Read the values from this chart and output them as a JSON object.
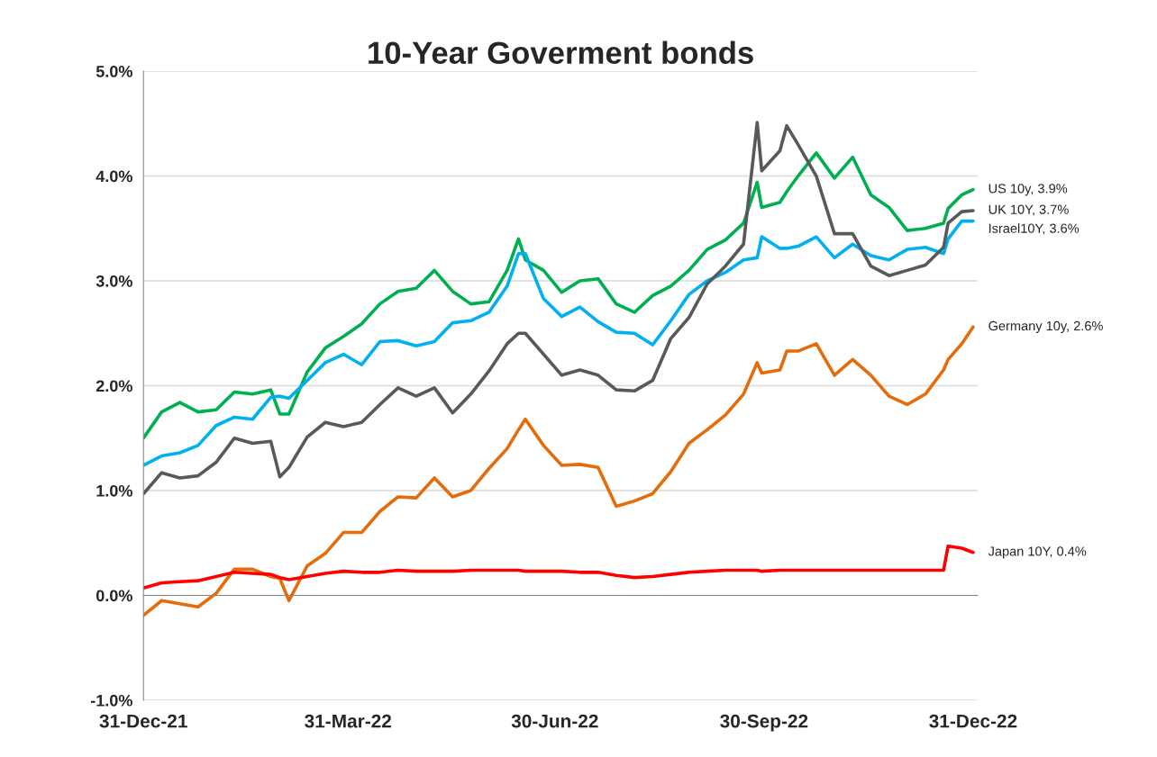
{
  "chart_data": {
    "type": "line",
    "title": "10-Year Goverment bonds",
    "x": [
      "2021-12-31",
      "2022-01-08",
      "2022-01-16",
      "2022-01-24",
      "2022-02-01",
      "2022-02-09",
      "2022-02-17",
      "2022-02-25",
      "2022-03-01",
      "2022-03-05",
      "2022-03-13",
      "2022-03-21",
      "2022-03-29",
      "2022-04-06",
      "2022-04-14",
      "2022-04-22",
      "2022-04-30",
      "2022-05-08",
      "2022-05-16",
      "2022-05-24",
      "2022-06-01",
      "2022-06-09",
      "2022-06-14",
      "2022-06-17",
      "2022-06-25",
      "2022-07-03",
      "2022-07-11",
      "2022-07-19",
      "2022-07-27",
      "2022-08-04",
      "2022-08-12",
      "2022-08-20",
      "2022-08-28",
      "2022-09-05",
      "2022-09-13",
      "2022-09-21",
      "2022-09-27",
      "2022-09-29",
      "2022-10-07",
      "2022-10-10",
      "2022-10-15",
      "2022-10-23",
      "2022-10-31",
      "2022-11-08",
      "2022-11-16",
      "2022-11-24",
      "2022-12-02",
      "2022-12-10",
      "2022-12-18",
      "2022-12-20",
      "2022-12-26",
      "2022-12-31"
    ],
    "series": [
      {
        "name": "US 10y, 3.9%",
        "color": "#00b050",
        "values": [
          1.5,
          1.75,
          1.84,
          1.75,
          1.77,
          1.94,
          1.92,
          1.96,
          1.73,
          1.73,
          2.13,
          2.36,
          2.47,
          2.59,
          2.78,
          2.9,
          2.93,
          3.1,
          2.9,
          2.78,
          2.8,
          3.1,
          3.4,
          3.2,
          3.1,
          2.89,
          3.0,
          3.02,
          2.78,
          2.7,
          2.86,
          2.95,
          3.1,
          3.3,
          3.39,
          3.55,
          3.94,
          3.7,
          3.75,
          3.85,
          4.0,
          4.22,
          3.98,
          4.18,
          3.82,
          3.7,
          3.48,
          3.5,
          3.55,
          3.69,
          3.82,
          3.87
        ]
      },
      {
        "name": "Israel10Y, 3.6%",
        "color": "#00b0f0",
        "values": [
          1.24,
          1.33,
          1.36,
          1.43,
          1.62,
          1.7,
          1.68,
          1.89,
          1.9,
          1.88,
          2.05,
          2.22,
          2.3,
          2.2,
          2.42,
          2.43,
          2.38,
          2.42,
          2.6,
          2.62,
          2.7,
          2.95,
          3.26,
          3.26,
          2.83,
          2.66,
          2.75,
          2.61,
          2.51,
          2.5,
          2.39,
          2.62,
          2.87,
          3.0,
          3.08,
          3.2,
          3.22,
          3.42,
          3.31,
          3.31,
          3.33,
          3.42,
          3.22,
          3.35,
          3.24,
          3.2,
          3.3,
          3.32,
          3.26,
          3.4,
          3.57,
          3.57
        ]
      },
      {
        "name": "UK 10Y, 3.7%",
        "color": "#595959",
        "values": [
          0.97,
          1.17,
          1.12,
          1.14,
          1.27,
          1.5,
          1.45,
          1.47,
          1.13,
          1.22,
          1.51,
          1.65,
          1.61,
          1.65,
          1.82,
          1.98,
          1.9,
          1.98,
          1.74,
          1.92,
          2.14,
          2.4,
          2.5,
          2.5,
          2.3,
          2.1,
          2.15,
          2.1,
          1.96,
          1.95,
          2.05,
          2.45,
          2.65,
          2.97,
          3.14,
          3.35,
          4.51,
          4.05,
          4.24,
          4.48,
          4.3,
          4.0,
          3.45,
          3.45,
          3.14,
          3.05,
          3.1,
          3.15,
          3.32,
          3.55,
          3.66,
          3.67
        ]
      },
      {
        "name": "Germany 10y, 2.6%",
        "color": "#e46c0a",
        "values": [
          -0.19,
          -0.05,
          -0.08,
          -0.11,
          0.02,
          0.25,
          0.25,
          0.18,
          0.16,
          -0.05,
          0.28,
          0.4,
          0.6,
          0.6,
          0.8,
          0.94,
          0.93,
          1.12,
          0.94,
          1.0,
          1.21,
          1.4,
          1.58,
          1.68,
          1.43,
          1.24,
          1.25,
          1.22,
          0.85,
          0.9,
          0.97,
          1.18,
          1.45,
          1.58,
          1.72,
          1.92,
          2.22,
          2.12,
          2.15,
          2.33,
          2.33,
          2.4,
          2.1,
          2.25,
          2.1,
          1.9,
          1.82,
          1.92,
          2.15,
          2.25,
          2.4,
          2.56
        ]
      },
      {
        "name": "Japan 10Y, 0.4%",
        "color": "#ff0000",
        "values": [
          0.07,
          0.12,
          0.13,
          0.14,
          0.18,
          0.22,
          0.21,
          0.2,
          0.17,
          0.15,
          0.18,
          0.21,
          0.23,
          0.22,
          0.22,
          0.24,
          0.23,
          0.23,
          0.23,
          0.24,
          0.24,
          0.24,
          0.24,
          0.23,
          0.23,
          0.23,
          0.22,
          0.22,
          0.19,
          0.17,
          0.18,
          0.2,
          0.22,
          0.23,
          0.24,
          0.24,
          0.24,
          0.23,
          0.24,
          0.24,
          0.24,
          0.24,
          0.24,
          0.24,
          0.24,
          0.24,
          0.24,
          0.24,
          0.24,
          0.47,
          0.45,
          0.41
        ]
      }
    ],
    "xlim": [
      "2021-12-31",
      "2023-01-02"
    ],
    "xticks": [
      {
        "value": "2021-12-31",
        "label": "31-Dec-21"
      },
      {
        "value": "2022-03-31",
        "label": "31-Mar-22"
      },
      {
        "value": "2022-06-30",
        "label": "30-Jun-22"
      },
      {
        "value": "2022-09-30",
        "label": "30-Sep-22"
      },
      {
        "value": "2022-12-31",
        "label": "31-Dec-22"
      }
    ],
    "ylim": [
      -1,
      5
    ],
    "yticks": [
      {
        "value": -1,
        "label": "-1.0%"
      },
      {
        "value": 0,
        "label": "0.0%"
      },
      {
        "value": 1,
        "label": "1.0%"
      },
      {
        "value": 2,
        "label": "2.0%"
      },
      {
        "value": 3,
        "label": "3.0%"
      },
      {
        "value": 4,
        "label": "4.0%"
      },
      {
        "value": 5,
        "label": "5.0%"
      }
    ],
    "grid": "y",
    "legend": false,
    "marker": "none",
    "line_style": "solid"
  }
}
